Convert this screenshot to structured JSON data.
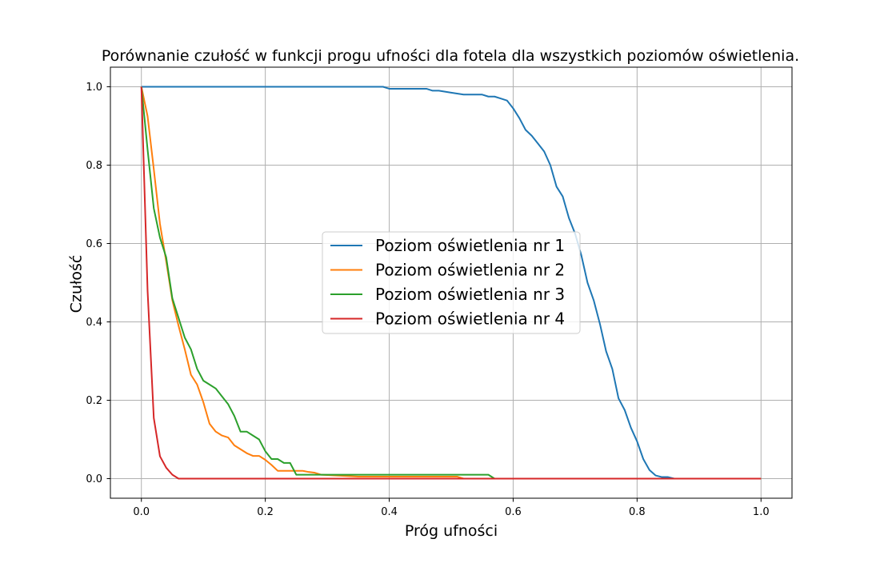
{
  "chart_data": {
    "type": "line",
    "title": "Porównanie czułość w funkcji progu ufności dla fotela dla wszystkich poziomów oświetlenia.",
    "xlabel": "Próg ufności",
    "ylabel": "Czułość",
    "xlim": [
      -0.05,
      1.05
    ],
    "ylim": [
      -0.05,
      1.05
    ],
    "xticks": [
      0.0,
      0.2,
      0.4,
      0.6,
      0.8,
      1.0
    ],
    "yticks": [
      0.0,
      0.2,
      0.4,
      0.6,
      0.8,
      1.0
    ],
    "xtick_labels": [
      "0.0",
      "0.2",
      "0.4",
      "0.6",
      "0.8",
      "1.0"
    ],
    "ytick_labels": [
      "0.0",
      "0.2",
      "0.4",
      "0.6",
      "0.8",
      "1.0"
    ],
    "grid": true,
    "legend_position": "center-right",
    "series": [
      {
        "name": "Poziom oświetlenia nr 1",
        "color": "#1f77b4",
        "x": [
          0.0,
          0.1,
          0.2,
          0.3,
          0.39,
          0.4,
          0.46,
          0.47,
          0.48,
          0.5,
          0.52,
          0.54,
          0.55,
          0.56,
          0.57,
          0.58,
          0.59,
          0.6,
          0.61,
          0.62,
          0.63,
          0.64,
          0.65,
          0.66,
          0.67,
          0.68,
          0.69,
          0.7,
          0.71,
          0.72,
          0.73,
          0.74,
          0.75,
          0.76,
          0.77,
          0.78,
          0.79,
          0.8,
          0.81,
          0.82,
          0.83,
          0.84,
          0.85,
          0.86,
          0.9,
          1.0
        ],
        "y": [
          1.0,
          1.0,
          1.0,
          1.0,
          1.0,
          0.995,
          0.995,
          0.99,
          0.99,
          0.985,
          0.98,
          0.98,
          0.98,
          0.975,
          0.975,
          0.97,
          0.965,
          0.945,
          0.92,
          0.89,
          0.875,
          0.855,
          0.835,
          0.8,
          0.745,
          0.72,
          0.665,
          0.625,
          0.57,
          0.5,
          0.455,
          0.395,
          0.325,
          0.28,
          0.205,
          0.175,
          0.13,
          0.095,
          0.05,
          0.022,
          0.008,
          0.004,
          0.004,
          0.0,
          0.0,
          0.0
        ]
      },
      {
        "name": "Poziom oświetlenia nr 2",
        "color": "#ff7f0e",
        "x": [
          0.0,
          0.01,
          0.02,
          0.03,
          0.04,
          0.05,
          0.06,
          0.07,
          0.08,
          0.09,
          0.1,
          0.11,
          0.12,
          0.13,
          0.14,
          0.15,
          0.16,
          0.17,
          0.18,
          0.19,
          0.2,
          0.21,
          0.22,
          0.25,
          0.26,
          0.27,
          0.28,
          0.29,
          0.35,
          0.4,
          0.45,
          0.5,
          0.51,
          0.52,
          0.6,
          1.0
        ],
        "y": [
          1.0,
          0.925,
          0.79,
          0.65,
          0.555,
          0.455,
          0.39,
          0.33,
          0.265,
          0.24,
          0.195,
          0.14,
          0.12,
          0.11,
          0.105,
          0.085,
          0.075,
          0.065,
          0.058,
          0.058,
          0.048,
          0.035,
          0.02,
          0.02,
          0.02,
          0.017,
          0.015,
          0.01,
          0.005,
          0.005,
          0.005,
          0.005,
          0.005,
          0.0,
          0.0,
          0.0
        ]
      },
      {
        "name": "Poziom oświetlenia nr 3",
        "color": "#2ca02c",
        "x": [
          0.0,
          0.01,
          0.02,
          0.03,
          0.04,
          0.05,
          0.06,
          0.07,
          0.08,
          0.09,
          0.1,
          0.11,
          0.12,
          0.13,
          0.14,
          0.15,
          0.16,
          0.17,
          0.18,
          0.19,
          0.2,
          0.21,
          0.22,
          0.23,
          0.24,
          0.25,
          0.26,
          0.3,
          0.4,
          0.5,
          0.56,
          0.57,
          0.6,
          1.0
        ],
        "y": [
          1.0,
          0.84,
          0.69,
          0.615,
          0.565,
          0.46,
          0.41,
          0.36,
          0.33,
          0.28,
          0.25,
          0.24,
          0.23,
          0.21,
          0.19,
          0.16,
          0.12,
          0.12,
          0.11,
          0.1,
          0.07,
          0.05,
          0.05,
          0.04,
          0.04,
          0.01,
          0.01,
          0.01,
          0.01,
          0.01,
          0.01,
          0.0,
          0.0,
          0.0
        ]
      },
      {
        "name": "Poziom oświetlenia nr 4",
        "color": "#d62728",
        "x": [
          0.0,
          0.01,
          0.02,
          0.03,
          0.04,
          0.05,
          0.06,
          0.1,
          0.5,
          1.0
        ],
        "y": [
          1.0,
          0.48,
          0.155,
          0.057,
          0.028,
          0.01,
          0.0,
          0.0,
          0.0,
          0.0
        ]
      }
    ]
  }
}
